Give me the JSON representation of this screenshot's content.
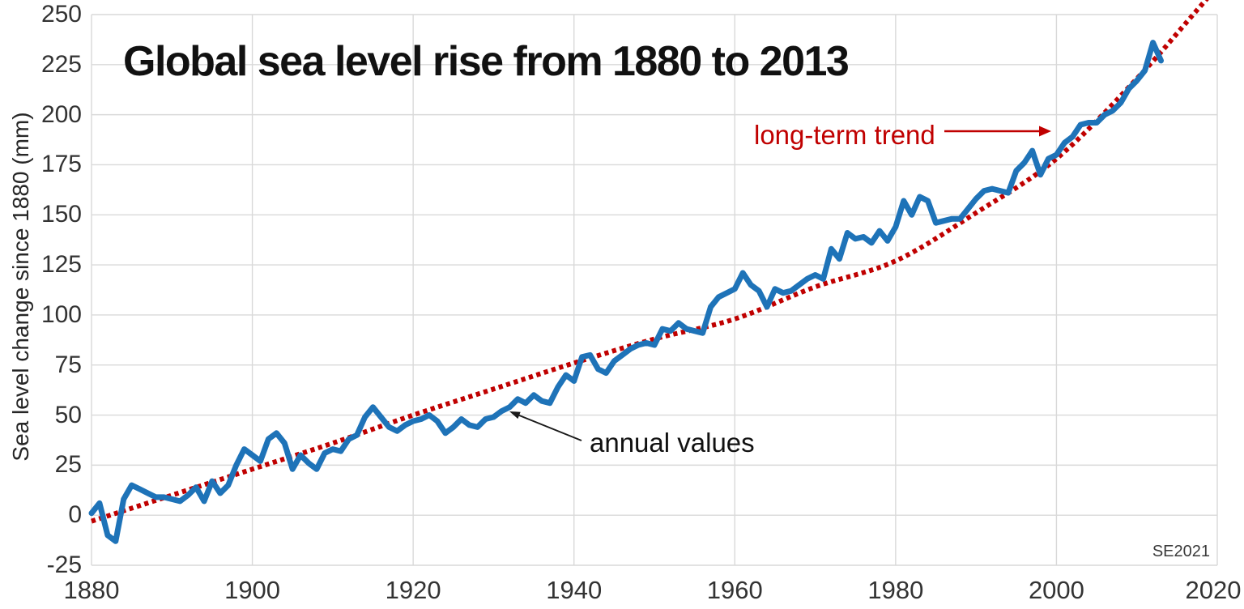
{
  "chart_data": {
    "type": "line",
    "title": "Global sea level rise from 1880 to 2013",
    "xlabel": "",
    "ylabel": "Sea level change since 1880 (mm)",
    "watermark": "SE2021",
    "annotations": {
      "annual_values": "annual values",
      "trend": "long-term trend"
    },
    "xlim": [
      1880,
      2020
    ],
    "ylim": [
      -25,
      250
    ],
    "grid": true,
    "legend_position": "none",
    "x_ticks": [
      1880,
      1900,
      1920,
      1940,
      1960,
      1980,
      2000,
      2020
    ],
    "y_ticks": [
      -25,
      0,
      25,
      50,
      75,
      100,
      125,
      150,
      175,
      200,
      225,
      250
    ],
    "colors": {
      "annual_line": "#1E73B8",
      "trend_line": "#C00000",
      "trend_text": "#C00000",
      "grid": "#D9D9D9",
      "annotation_arrow": "#1a1a1a"
    },
    "series": [
      {
        "name": "annual values",
        "style": "solid",
        "color": "#1E73B8",
        "x_start": 1880,
        "x_step": 1,
        "values": [
          1,
          6,
          -10,
          -13,
          8,
          15,
          13,
          11,
          9,
          9,
          8,
          7,
          10,
          14,
          7,
          17,
          11,
          15,
          25,
          33,
          30,
          27,
          38,
          41,
          36,
          23,
          30,
          26,
          23,
          31,
          33,
          32,
          38,
          40,
          49,
          54,
          49,
          44,
          42,
          45,
          47,
          48,
          50,
          47,
          41,
          44,
          48,
          45,
          44,
          48,
          49,
          52,
          54,
          58,
          56,
          60,
          57,
          56,
          64,
          70,
          67,
          79,
          80,
          73,
          71,
          77,
          80,
          83,
          85,
          86,
          85,
          93,
          92,
          96,
          93,
          92,
          91,
          104,
          109,
          111,
          113,
          121,
          115,
          112,
          104,
          113,
          111,
          112,
          115,
          118,
          120,
          118,
          133,
          128,
          141,
          138,
          139,
          136,
          142,
          137,
          144,
          157,
          150,
          159,
          157,
          146,
          147,
          148,
          148,
          153,
          158,
          162,
          163,
          162,
          161,
          172,
          176,
          182,
          170,
          178,
          180,
          186,
          189,
          195,
          196,
          196,
          200,
          202,
          206,
          213,
          217,
          222,
          236,
          227
        ]
      },
      {
        "name": "long-term trend",
        "style": "dotted",
        "color": "#C00000",
        "points": [
          [
            1880,
            -3
          ],
          [
            1890,
            10
          ],
          [
            1900,
            23
          ],
          [
            1910,
            36
          ],
          [
            1920,
            50
          ],
          [
            1930,
            63
          ],
          [
            1940,
            76
          ],
          [
            1950,
            88
          ],
          [
            1960,
            98
          ],
          [
            1970,
            114
          ],
          [
            1980,
            127
          ],
          [
            1990,
            151
          ],
          [
            2000,
            178
          ],
          [
            2010,
            218
          ],
          [
            2017,
            250
          ],
          [
            2020,
            264
          ]
        ]
      }
    ]
  }
}
